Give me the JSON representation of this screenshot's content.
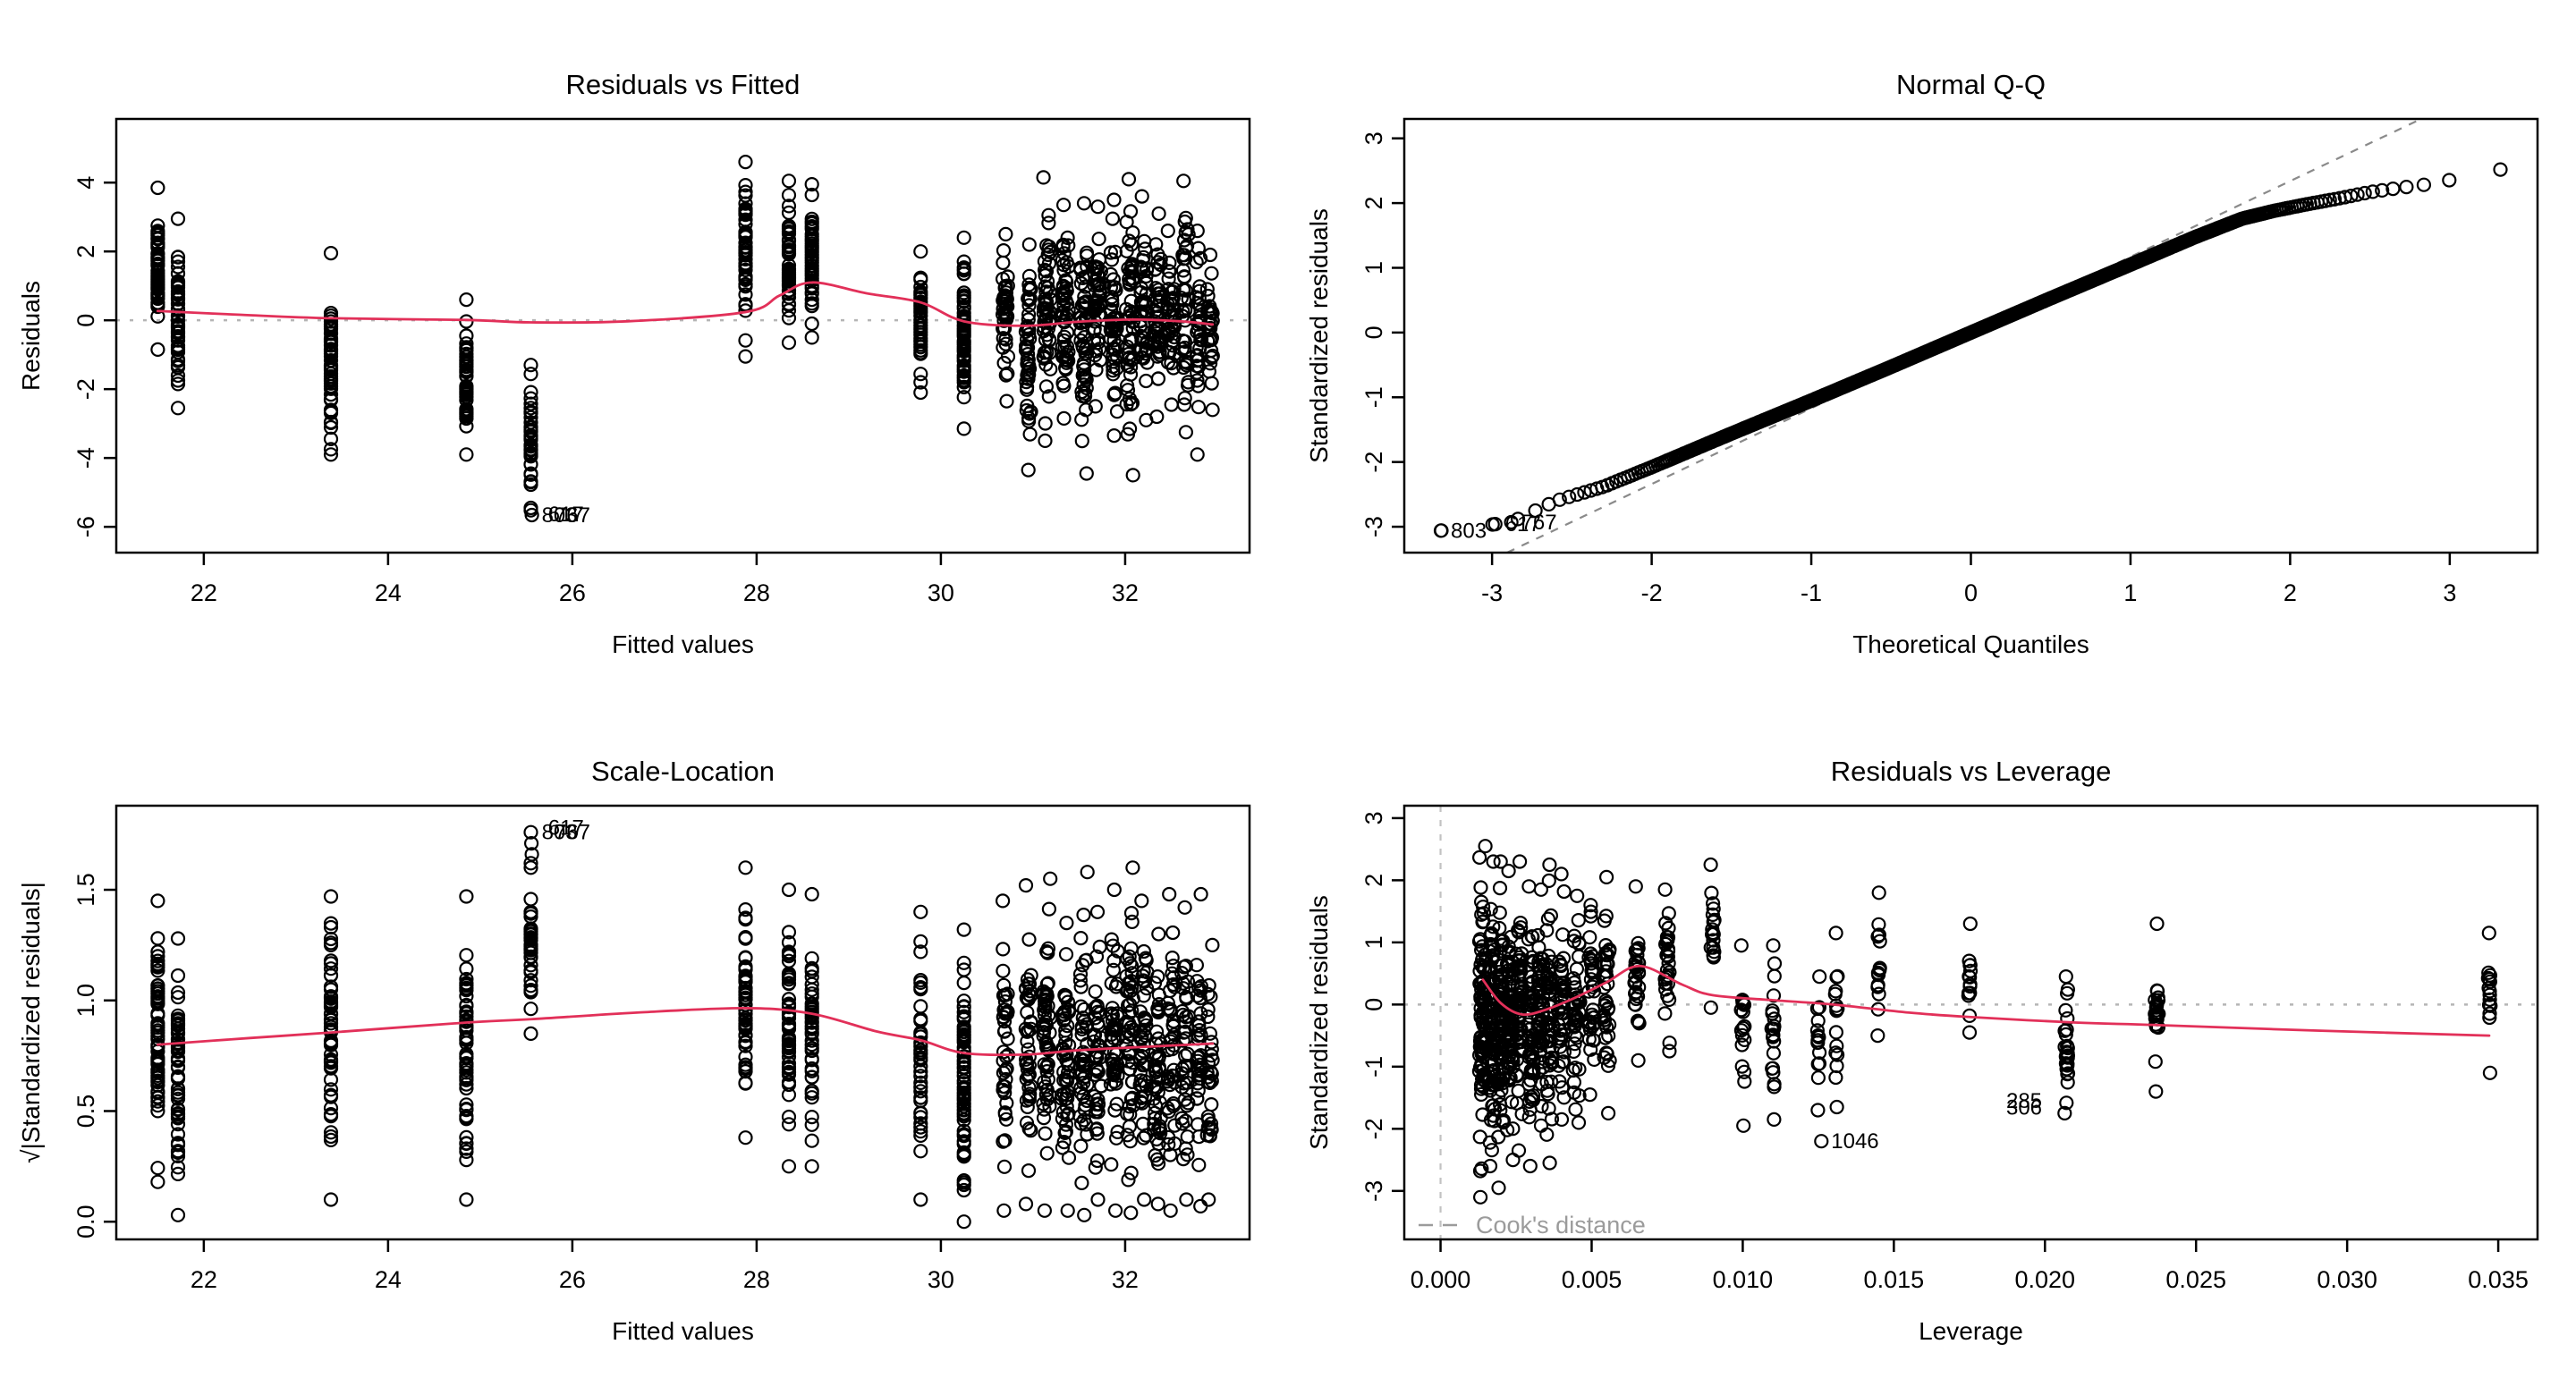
{
  "figure": {
    "background": "#ffffff",
    "description": "R lm() regression diagnostic plots, 2x2 panel"
  },
  "colors": {
    "point": "#000000",
    "loess_line": "#e23059",
    "zero_ref_gray": "#b5b5b5",
    "qq_dash_gray": "#8a8a8a",
    "cooks_gray": "#c2c2c2",
    "legend_gray": "#9b9b9b",
    "axis": "#000000"
  },
  "chart_data": [
    {
      "id": "residuals-vs-fitted",
      "type": "scatter",
      "seed": 11,
      "title": "Residuals vs Fitted",
      "xlabel": "Fitted values",
      "ylabel": "Residuals",
      "xlim": [
        21.05,
        33.35
      ],
      "ylim": [
        -6.75,
        5.85
      ],
      "xticks": [
        22,
        24,
        26,
        28,
        30,
        32
      ],
      "xtick_labels": [
        "22",
        "24",
        "26",
        "28",
        "30",
        "32"
      ],
      "yticks": [
        -6,
        -4,
        -2,
        0,
        2,
        4
      ],
      "ytick_labels": [
        "-6",
        "-4",
        "-2",
        "0",
        "2",
        "4"
      ],
      "zero_line": 0,
      "grid": false,
      "clusters": [
        [
          21.5,
          -0.85,
          3.85,
          65,
          0
        ],
        [
          21.72,
          -2.55,
          2.95,
          60,
          0
        ],
        [
          23.38,
          -3.9,
          1.95,
          60,
          0
        ],
        [
          24.85,
          -3.9,
          0.6,
          55,
          0
        ],
        [
          25.55,
          -5.45,
          -1.3,
          38,
          0
        ],
        [
          27.88,
          -1.05,
          4.6,
          50,
          0
        ],
        [
          28.35,
          -0.65,
          4.05,
          55,
          0
        ],
        [
          28.6,
          -0.5,
          3.95,
          50,
          0
        ],
        [
          29.78,
          -2.1,
          2.0,
          45,
          0
        ],
        [
          30.25,
          -3.15,
          2.4,
          75,
          0
        ],
        [
          30.7,
          -2.35,
          2.5,
          40,
          0.03
        ],
        [
          30.95,
          -4.35,
          2.2,
          45,
          0.03
        ],
        [
          31.15,
          -3.5,
          4.15,
          55,
          0.04
        ],
        [
          31.35,
          -2.85,
          3.35,
          55,
          0.04
        ],
        [
          31.55,
          -4.45,
          3.4,
          50,
          0.04
        ],
        [
          31.7,
          -2.5,
          3.3,
          45,
          0.04
        ],
        [
          31.88,
          -3.35,
          3.5,
          50,
          0.04
        ],
        [
          32.05,
          -4.5,
          4.1,
          50,
          0.04
        ],
        [
          32.2,
          -2.9,
          3.6,
          45,
          0.04
        ],
        [
          32.35,
          -2.8,
          3.1,
          45,
          0.04
        ],
        [
          32.5,
          -2.45,
          2.6,
          40,
          0.04
        ],
        [
          32.65,
          -3.25,
          4.05,
          40,
          0.04
        ],
        [
          32.8,
          -3.9,
          2.6,
          35,
          0.03
        ],
        [
          32.92,
          -2.6,
          1.9,
          30,
          0.03
        ]
      ],
      "extra_points": [
        [
          25.55,
          -5.52
        ],
        [
          25.56,
          -5.66
        ]
      ],
      "loess": [
        [
          21.5,
          0.27
        ],
        [
          22.4,
          0.16
        ],
        [
          23.38,
          0.06
        ],
        [
          24.85,
          0.01
        ],
        [
          25.55,
          -0.06
        ],
        [
          26.6,
          -0.03
        ],
        [
          27.88,
          0.24
        ],
        [
          28.25,
          0.72
        ],
        [
          28.6,
          1.1
        ],
        [
          29.2,
          0.78
        ],
        [
          29.78,
          0.52
        ],
        [
          30.25,
          -0.03
        ],
        [
          30.9,
          -0.16
        ],
        [
          31.5,
          -0.04
        ],
        [
          32.1,
          0.02
        ],
        [
          32.6,
          -0.03
        ],
        [
          32.95,
          -0.12
        ]
      ],
      "point_labels": [
        {
          "t": "803",
          "x": 25.56,
          "y": -5.66,
          "dx": 11,
          "a": "start"
        },
        {
          "t": "617",
          "x": 25.63,
          "y": -5.63,
          "dx": 11,
          "a": "start"
        },
        {
          "t": "767",
          "x": 25.7,
          "y": -5.66,
          "dx": 11,
          "a": "start"
        }
      ]
    },
    {
      "id": "normal-qq",
      "type": "qq",
      "seed": 22,
      "title": "Normal Q-Q",
      "xlabel": "Theoretical Quantiles",
      "ylabel": "Standardized residuals",
      "xlim": [
        -3.55,
        3.55
      ],
      "ylim": [
        -3.4,
        3.3
      ],
      "xticks": [
        -3,
        -2,
        -1,
        0,
        1,
        2,
        3
      ],
      "xtick_labels": [
        "-3",
        "-2",
        "-1",
        "0",
        "1",
        "2",
        "3"
      ],
      "yticks": [
        -3,
        -2,
        -1,
        0,
        1,
        2,
        3
      ],
      "ytick_labels": [
        "-3",
        "-2",
        "-1",
        "0",
        "1",
        "2",
        "3"
      ],
      "grid": false,
      "qq": {
        "n": 1100,
        "curve": [
          [
            -3.32,
            -3.06
          ],
          [
            -2.98,
            -2.96
          ],
          [
            -2.88,
            -2.93
          ],
          [
            -2.6,
            -2.6
          ],
          [
            -2.3,
            -2.38
          ],
          [
            -2.0,
            -2.08
          ],
          [
            -1.5,
            -1.56
          ],
          [
            -1.0,
            -1.05
          ],
          [
            -0.5,
            -0.53
          ],
          [
            0,
            0
          ],
          [
            0.5,
            0.53
          ],
          [
            1.0,
            1.05
          ],
          [
            1.4,
            1.47
          ],
          [
            1.7,
            1.76
          ],
          [
            1.9,
            1.88
          ],
          [
            2.1,
            1.98
          ],
          [
            2.3,
            2.07
          ],
          [
            2.5,
            2.17
          ],
          [
            2.7,
            2.24
          ],
          [
            2.9,
            2.3
          ],
          [
            3.08,
            2.4
          ],
          [
            3.32,
            2.52
          ]
        ]
      },
      "ref_line": {
        "slope": 1.17,
        "intercept": 0
      },
      "extra_points": [
        [
          -3.32,
          -3.06
        ],
        [
          -2.98,
          -2.96
        ],
        [
          -2.88,
          -2.93
        ]
      ],
      "point_labels": [
        {
          "t": "803",
          "x": -3.32,
          "y": -3.06,
          "dx": 11,
          "a": "start"
        },
        {
          "t": "617",
          "x": -2.98,
          "y": -2.96,
          "dx": 11,
          "a": "start"
        },
        {
          "t": "767",
          "x": -2.88,
          "y": -2.93,
          "dx": 11,
          "a": "start"
        }
      ]
    },
    {
      "id": "scale-location",
      "type": "scatter",
      "seed": 33,
      "title": "Scale-Location",
      "xlabel": "Fitted values",
      "ylabel": "√|Standardized residuals|",
      "xlim": [
        21.05,
        33.35
      ],
      "ylim": [
        -0.08,
        1.88
      ],
      "xticks": [
        22,
        24,
        26,
        28,
        30,
        32
      ],
      "xtick_labels": [
        "22",
        "24",
        "26",
        "28",
        "30",
        "32"
      ],
      "yticks": [
        0,
        0.5,
        1,
        1.5
      ],
      "ytick_labels": [
        "0.0",
        "0.5",
        "1.0",
        "1.5"
      ],
      "grid": false,
      "clusters": [
        [
          21.5,
          0.18,
          1.45,
          65,
          0
        ],
        [
          21.72,
          0.03,
          1.28,
          60,
          0
        ],
        [
          23.38,
          0.1,
          1.47,
          60,
          0
        ],
        [
          24.85,
          0.1,
          1.47,
          55,
          0
        ],
        [
          25.55,
          0.85,
          1.6,
          38,
          0
        ],
        [
          27.88,
          0.38,
          1.6,
          50,
          0
        ],
        [
          28.35,
          0.25,
          1.5,
          55,
          0
        ],
        [
          28.6,
          0.25,
          1.48,
          50,
          0
        ],
        [
          29.78,
          0.1,
          1.4,
          45,
          0
        ],
        [
          30.25,
          0.0,
          1.32,
          75,
          0
        ],
        [
          30.7,
          0.05,
          1.45,
          40,
          0.03
        ],
        [
          30.95,
          0.08,
          1.52,
          45,
          0.03
        ],
        [
          31.15,
          0.05,
          1.55,
          55,
          0.04
        ],
        [
          31.35,
          0.05,
          1.35,
          55,
          0.04
        ],
        [
          31.55,
          0.03,
          1.58,
          50,
          0.04
        ],
        [
          31.7,
          0.1,
          1.4,
          45,
          0.04
        ],
        [
          31.88,
          0.05,
          1.5,
          50,
          0.04
        ],
        [
          32.05,
          0.04,
          1.6,
          50,
          0.04
        ],
        [
          32.2,
          0.1,
          1.45,
          45,
          0.04
        ],
        [
          32.35,
          0.08,
          1.3,
          45,
          0.04
        ],
        [
          32.5,
          0.05,
          1.48,
          40,
          0.04
        ],
        [
          32.65,
          0.1,
          1.42,
          40,
          0.04
        ],
        [
          32.8,
          0.07,
          1.48,
          35,
          0.03
        ],
        [
          32.92,
          0.1,
          1.25,
          30,
          0.03
        ]
      ],
      "extra_points": [
        [
          25.55,
          1.76
        ],
        [
          25.555,
          1.71
        ],
        [
          25.56,
          1.66
        ],
        [
          25.55,
          1.62
        ]
      ],
      "loess": [
        [
          21.5,
          0.8
        ],
        [
          22.5,
          0.83
        ],
        [
          23.38,
          0.855
        ],
        [
          24.85,
          0.9
        ],
        [
          25.55,
          0.915
        ],
        [
          26.7,
          0.945
        ],
        [
          27.88,
          0.965
        ],
        [
          28.6,
          0.94
        ],
        [
          29.3,
          0.86
        ],
        [
          29.78,
          0.82
        ],
        [
          30.25,
          0.762
        ],
        [
          30.9,
          0.755
        ],
        [
          31.5,
          0.775
        ],
        [
          32.2,
          0.79
        ],
        [
          32.95,
          0.805
        ]
      ],
      "point_labels": [
        {
          "t": "803",
          "x": 25.56,
          "y": 1.76,
          "dx": 11,
          "a": "start"
        },
        {
          "t": "617",
          "x": 25.63,
          "y": 1.78,
          "dx": 11,
          "a": "start"
        },
        {
          "t": "767",
          "x": 25.7,
          "y": 1.76,
          "dx": 11,
          "a": "start"
        }
      ]
    },
    {
      "id": "residuals-vs-leverage",
      "type": "scatter",
      "seed": 44,
      "title": "Residuals vs Leverage",
      "xlabel": "Leverage",
      "ylabel": "Standardized residuals",
      "xlim": [
        -0.0012,
        0.0363
      ],
      "ylim": [
        -3.78,
        3.2
      ],
      "xticks": [
        0,
        0.005,
        0.01,
        0.015,
        0.02,
        0.025,
        0.03,
        0.035
      ],
      "xtick_labels": [
        "0.000",
        "0.005",
        "0.010",
        "0.015",
        "0.020",
        "0.025",
        "0.030",
        "0.035"
      ],
      "yticks": [
        -3,
        -2,
        -1,
        0,
        1,
        2,
        3
      ],
      "ytick_labels": [
        "-3",
        "-2",
        "-1",
        "0",
        "1",
        "2",
        "3"
      ],
      "zero_line": 0,
      "vline": 0,
      "grid": false,
      "clusters": [
        [
          0.0014,
          -3.1,
          2.55,
          95,
          0.00012
        ],
        [
          0.0017,
          -2.6,
          2.3,
          70,
          0.0001
        ],
        [
          0.002,
          -2.95,
          2.3,
          80,
          0.0001
        ],
        [
          0.0023,
          -2.5,
          2.15,
          70,
          0.0001
        ],
        [
          0.0026,
          -2.35,
          2.3,
          60,
          0.0001
        ],
        [
          0.003,
          -2.6,
          1.9,
          55,
          0.0001
        ],
        [
          0.0033,
          -1.95,
          1.85,
          50,
          0.0001
        ],
        [
          0.0036,
          -2.55,
          2.25,
          50,
          0.0001
        ],
        [
          0.004,
          -1.85,
          2.1,
          45,
          0.00012
        ],
        [
          0.0045,
          -1.9,
          1.75,
          40,
          0.00012
        ],
        [
          0.005,
          -1.45,
          1.6,
          35,
          0.0001
        ],
        [
          0.0055,
          -1.75,
          2.05,
          40,
          0.0001
        ],
        [
          0.0065,
          -0.9,
          1.9,
          30,
          8e-05
        ],
        [
          0.0075,
          -0.75,
          1.85,
          28,
          8e-05
        ],
        [
          0.009,
          -0.05,
          2.25,
          18,
          6e-05
        ],
        [
          0.01,
          -1.95,
          0.95,
          18,
          6e-05
        ],
        [
          0.011,
          -1.85,
          0.95,
          22,
          6e-05
        ],
        [
          0.0125,
          -1.7,
          0.45,
          14,
          4e-05
        ],
        [
          0.0131,
          -1.65,
          1.15,
          16,
          4e-05
        ],
        [
          0.0145,
          -0.5,
          1.8,
          14,
          4e-05
        ],
        [
          0.0175,
          -0.45,
          1.3,
          14,
          4e-05
        ],
        [
          0.0207,
          -1.75,
          0.45,
          26,
          6e-05
        ],
        [
          0.0237,
          -1.4,
          1.3,
          22,
          6e-05
        ],
        [
          0.0347,
          -1.1,
          1.15,
          16,
          4e-05
        ]
      ],
      "extra_points": [
        [
          0.0126,
          -2.2
        ]
      ],
      "loess": [
        [
          0.0014,
          0.4
        ],
        [
          0.002,
          0.02
        ],
        [
          0.0027,
          -0.16
        ],
        [
          0.0035,
          -0.08
        ],
        [
          0.0045,
          0.12
        ],
        [
          0.0055,
          0.36
        ],
        [
          0.0066,
          0.62
        ],
        [
          0.008,
          0.32
        ],
        [
          0.009,
          0.15
        ],
        [
          0.011,
          0.07
        ],
        [
          0.013,
          0.0
        ],
        [
          0.0155,
          -0.13
        ],
        [
          0.0175,
          -0.2
        ],
        [
          0.021,
          -0.29
        ],
        [
          0.0237,
          -0.33
        ],
        [
          0.029,
          -0.42
        ],
        [
          0.0347,
          -0.5
        ]
      ],
      "point_labels": [
        {
          "t": "1046",
          "x": 0.0126,
          "y": -2.2,
          "dx": 11,
          "a": "start"
        },
        {
          "t": "285",
          "x": 0.0202,
          "y": -1.55,
          "dx": -10,
          "a": "end"
        },
        {
          "t": "306",
          "x": 0.0202,
          "y": -1.66,
          "dx": -10,
          "a": "end"
        }
      ],
      "legend": {
        "text": "Cook's distance",
        "y": -3.55
      }
    }
  ]
}
